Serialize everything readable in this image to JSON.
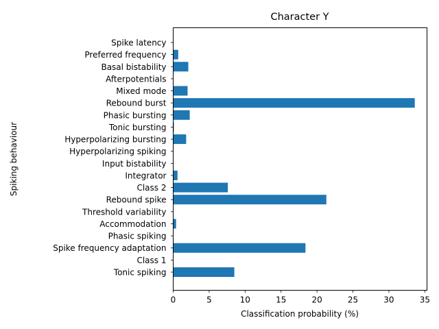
{
  "chart_data": {
    "type": "bar",
    "orientation": "horizontal",
    "title": "Character Y",
    "xlabel": "Classification probability (%)",
    "ylabel": "Spiking behaviour",
    "xlim": [
      0,
      35.3
    ],
    "xticks": [
      "0",
      "5",
      "10",
      "15",
      "20",
      "25",
      "30",
      "35"
    ],
    "grid": false,
    "bar_color": "#1f77b4",
    "categories": [
      "Tonic spiking",
      "Class 1",
      "Spike frequency adaptation",
      "Phasic spiking",
      "Accommodation",
      "Threshold variability",
      "Rebound spike",
      "Class 2",
      "Integrator",
      "Input bistability",
      "Hyperpolarizing spiking",
      "Hyperpolarizing bursting",
      "Tonic bursting",
      "Phasic bursting",
      "Rebound burst",
      "Mixed mode",
      "Afterpotentials",
      "Basal bistability",
      "Preferred frequency",
      "Spike latency"
    ],
    "values": [
      8.5,
      0,
      18.4,
      0,
      0.4,
      0,
      21.3,
      7.6,
      0.6,
      0,
      0,
      1.8,
      0.1,
      2.3,
      33.6,
      2.0,
      0,
      2.1,
      0.7,
      0
    ]
  }
}
